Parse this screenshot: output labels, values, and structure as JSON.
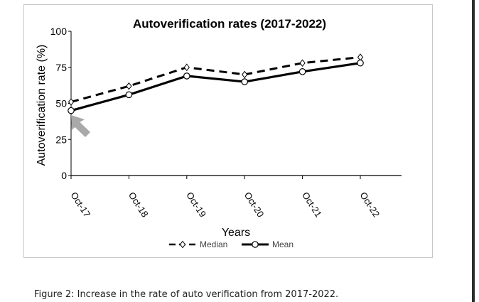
{
  "chart_data": {
    "type": "line",
    "title": "Autoverification rates (2017-2022)",
    "xlabel": "Years",
    "ylabel": "Autoverification rate (%)",
    "categories": [
      "Oct-17",
      "Oct-18",
      "Oct-19",
      "Oct-20",
      "Oct-21",
      "Oct-22"
    ],
    "yticks": [
      "0",
      "25",
      "50",
      "75",
      "100"
    ],
    "ylim": [
      0,
      100
    ],
    "grid": false,
    "legend_position": "bottom",
    "series": [
      {
        "name": "Median",
        "values": [
          51,
          62,
          75,
          70,
          78,
          82
        ],
        "style": "dashed",
        "marker": "diamond",
        "color": "#000000"
      },
      {
        "name": "Mean",
        "values": [
          45,
          56,
          69,
          65,
          72,
          78
        ],
        "style": "solid",
        "marker": "circle",
        "color": "#000000"
      }
    ],
    "annotation": {
      "type": "arrow",
      "points_to": "Oct-17 Mean",
      "color": "#a9a9a9"
    }
  },
  "caption": "Figure 2: Increase in the rate of auto verification from 2017-2022."
}
